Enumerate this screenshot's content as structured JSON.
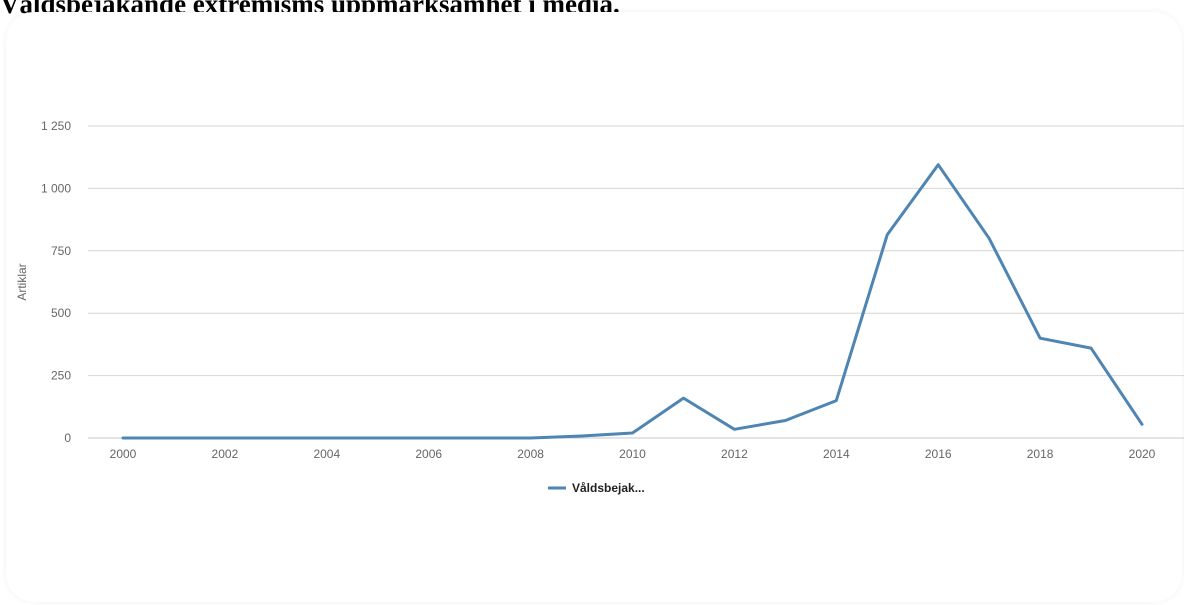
{
  "page": {
    "title": "Våldsbejakande extremisms uppmärksamhet i media."
  },
  "chart_data": {
    "type": "line",
    "title": "Våldsbejakande extremisms uppmärksamhet i media.",
    "xlabel": "",
    "ylabel": "Artiklar",
    "x": [
      2000,
      2001,
      2002,
      2003,
      2004,
      2005,
      2006,
      2007,
      2008,
      2009,
      2010,
      2011,
      2012,
      2013,
      2014,
      2015,
      2016,
      2017,
      2018,
      2019,
      2020
    ],
    "x_ticks": [
      "2000",
      "2002",
      "2004",
      "2006",
      "2008",
      "2010",
      "2012",
      "2014",
      "2016",
      "2018",
      "2020"
    ],
    "y_ticks": [
      "0",
      "250",
      "500",
      "750",
      "1 000",
      "1 250"
    ],
    "ylim": [
      0,
      1250
    ],
    "series": [
      {
        "name": "Våldsbejak...",
        "color": "#4e85b2",
        "values": [
          0,
          0,
          0,
          0,
          0,
          0,
          0,
          0,
          0,
          8,
          20,
          160,
          35,
          70,
          150,
          815,
          1095,
          800,
          400,
          360,
          55
        ]
      }
    ],
    "grid": true,
    "legend_position": "bottom"
  }
}
